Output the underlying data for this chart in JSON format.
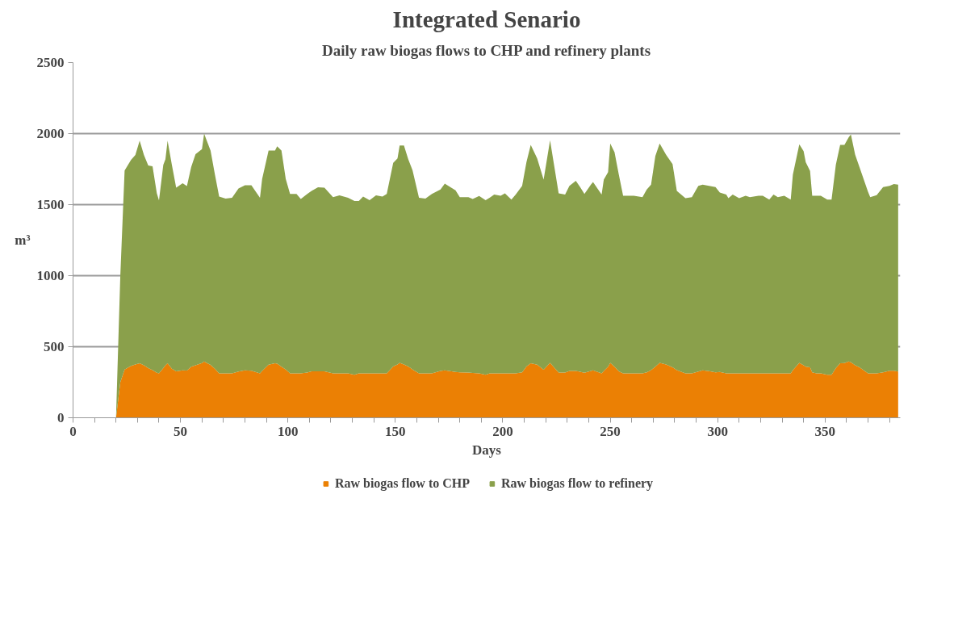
{
  "chart_data": {
    "type": "area",
    "stacked": true,
    "title": "Integrated Senario",
    "subtitle": "Daily raw biogas flows to CHP and refinery plants",
    "xlabel": "Days",
    "ylabel": "m³",
    "x": [
      20,
      22,
      24,
      27,
      29,
      31,
      33,
      35,
      37,
      39,
      40,
      42,
      43,
      44,
      46,
      48,
      51,
      53,
      55,
      57,
      60,
      61,
      64,
      66,
      68,
      71,
      74,
      77,
      80,
      83,
      87,
      88,
      91,
      94,
      95,
      97,
      99,
      101,
      104,
      106,
      109,
      111,
      114,
      117,
      121,
      124,
      128,
      131,
      133,
      135,
      138,
      141,
      144,
      146,
      149,
      151,
      152,
      154,
      156,
      158,
      161,
      164,
      167,
      171,
      173,
      178,
      180,
      184,
      186,
      189,
      192,
      194,
      196,
      199,
      201,
      204,
      206,
      209,
      211,
      213,
      216,
      219,
      222,
      226,
      229,
      231,
      234,
      236,
      238,
      241,
      242,
      246,
      247,
      249,
      250,
      252,
      254,
      256,
      259,
      261,
      265,
      267,
      269,
      271,
      273,
      276,
      279,
      281,
      285,
      288,
      291,
      293,
      296,
      299,
      301,
      304,
      305,
      307,
      310,
      313,
      315,
      319,
      321,
      324,
      326,
      328,
      331,
      334,
      335,
      338,
      340,
      341,
      343,
      344,
      346,
      348,
      351,
      353,
      355,
      357,
      359,
      361,
      362,
      364,
      366,
      370,
      371,
      374,
      377,
      380,
      382,
      384
    ],
    "series": [
      {
        "name": "Raw biogas flow to CHP",
        "color": "#eb8004",
        "values": [
          0,
          250,
          340,
          365,
          375,
          383,
          370,
          350,
          335,
          317,
          313,
          350,
          370,
          383,
          345,
          326,
          334,
          332,
          360,
          370,
          385,
          396,
          372,
          345,
          313,
          313,
          313,
          325,
          334,
          331,
          313,
          330,
          373,
          383,
          380,
          360,
          340,
          313,
          313,
          313,
          318,
          326,
          326,
          326,
          313,
          313,
          313,
          303,
          313,
          313,
          313,
          313,
          313,
          313,
          361,
          375,
          387,
          375,
          361,
          340,
          313,
          313,
          313,
          330,
          334,
          322,
          320,
          318,
          316,
          313,
          303,
          313,
          313,
          313,
          313,
          313,
          313,
          320,
          361,
          383,
          373,
          338,
          387,
          318,
          318,
          330,
          330,
          324,
          317,
          330,
          334,
          313,
          330,
          360,
          387,
          360,
          326,
          313,
          313,
          313,
          313,
          320,
          335,
          360,
          387,
          375,
          355,
          335,
          313,
          313,
          325,
          334,
          328,
          320,
          322,
          313,
          313,
          313,
          313,
          313,
          313,
          313,
          313,
          313,
          313,
          313,
          313,
          313,
          335,
          387,
          370,
          360,
          355,
          320,
          313,
          313,
          303,
          303,
          350,
          383,
          385,
          396,
          390,
          369,
          355,
          313,
          313,
          313,
          320,
          331,
          331,
          325
        ]
      },
      {
        "name": "Raw biogas flow to refinery",
        "color": "#8aa04b",
        "values": [
          0,
          750,
          1400,
          1450,
          1475,
          1567,
          1480,
          1425,
          1435,
          1263,
          1217,
          1430,
          1450,
          1567,
          1435,
          1294,
          1316,
          1298,
          1405,
          1485,
          1505,
          1604,
          1508,
          1370,
          1244,
          1230,
          1235,
          1288,
          1302,
          1305,
          1235,
          1350,
          1507,
          1497,
          1530,
          1520,
          1340,
          1262,
          1262,
          1227,
          1257,
          1270,
          1296,
          1293,
          1240,
          1253,
          1235,
          1222,
          1212,
          1244,
          1218,
          1253,
          1244,
          1262,
          1433,
          1450,
          1529,
          1541,
          1459,
          1401,
          1235,
          1230,
          1262,
          1276,
          1314,
          1279,
          1233,
          1234,
          1224,
          1248,
          1228,
          1237,
          1258,
          1249,
          1267,
          1223,
          1258,
          1312,
          1438,
          1538,
          1452,
          1338,
          1566,
          1262,
          1253,
          1302,
          1337,
          1300,
          1258,
          1311,
          1325,
          1258,
          1346,
          1369,
          1543,
          1509,
          1385,
          1249,
          1249,
          1249,
          1240,
          1286,
          1306,
          1482,
          1543,
          1476,
          1430,
          1262,
          1232,
          1240,
          1307,
          1307,
          1304,
          1304,
          1263,
          1258,
          1232,
          1258,
          1232,
          1249,
          1240,
          1249,
          1249,
          1223,
          1258,
          1240,
          1249,
          1223,
          1376,
          1538,
          1507,
          1439,
          1382,
          1242,
          1249,
          1249,
          1233,
          1233,
          1431,
          1538,
          1536,
          1578,
          1605,
          1482,
          1409,
          1276,
          1240,
          1254,
          1304,
          1301,
          1314,
          1315
        ]
      }
    ],
    "xlim": [
      0,
      385
    ],
    "ylim": [
      0,
      2500
    ],
    "xticks": [
      0,
      {
        "value": 10,
        "label": null
      },
      {
        "value": 20,
        "label": null
      },
      {
        "value": 30,
        "label": null
      },
      {
        "value": 40,
        "label": null
      },
      50,
      {
        "value": 60,
        "label": null
      },
      {
        "value": 70,
        "label": null
      },
      {
        "value": 80,
        "label": null
      },
      {
        "value": 90,
        "label": null
      },
      100,
      {
        "value": 110,
        "label": null
      },
      {
        "value": 120,
        "label": null
      },
      {
        "value": 130,
        "label": null
      },
      {
        "value": 140,
        "label": null
      },
      150,
      {
        "value": 160,
        "label": null
      },
      {
        "value": 170,
        "label": null
      },
      {
        "value": 180,
        "label": null
      },
      {
        "value": 190,
        "label": null
      },
      200,
      {
        "value": 210,
        "label": null
      },
      {
        "value": 220,
        "label": null
      },
      {
        "value": 230,
        "label": null
      },
      {
        "value": 240,
        "label": null
      },
      250,
      {
        "value": 260,
        "label": null
      },
      {
        "value": 270,
        "label": null
      },
      {
        "value": 280,
        "label": null
      },
      {
        "value": 290,
        "label": null
      },
      300,
      {
        "value": 310,
        "label": null
      },
      {
        "value": 320,
        "label": null
      },
      {
        "value": 330,
        "label": null
      },
      {
        "value": 340,
        "label": null
      },
      350,
      {
        "value": 360,
        "label": null
      },
      {
        "value": 370,
        "label": null
      },
      {
        "value": 380,
        "label": null
      }
    ],
    "yticks": [
      0,
      500,
      1000,
      1500,
      2000,
      2500
    ],
    "grid": "y",
    "legend": "bottom"
  }
}
